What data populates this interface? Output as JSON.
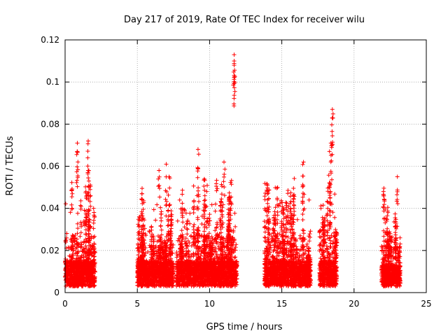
{
  "chart_data": {
    "type": "scatter",
    "title": "Day 217 of 2019, Rate Of TEC Index for receiver wilu",
    "xlabel": "GPS time / hours",
    "ylabel": "ROTI / TECUs",
    "xlim": [
      0,
      25
    ],
    "ylim": [
      0,
      0.12
    ],
    "xticks": [
      0,
      5,
      10,
      15,
      20,
      25
    ],
    "xtick_labels": [
      "0",
      "5",
      "10",
      "15",
      "20",
      "25"
    ],
    "yticks": [
      0,
      0.02,
      0.04,
      0.06,
      0.08,
      0.1,
      0.12
    ],
    "ytick_labels": [
      "0",
      "0.02",
      "0.04",
      "0.06",
      "0.08",
      "0.1",
      "0.12"
    ],
    "grid": true,
    "marker": "+",
    "color": "#ff0000",
    "series": [
      {
        "name": "ROTI",
        "clusters": [
          {
            "start": 0.0,
            "end": 2.1,
            "base": 0.012,
            "spread": 0.022
          },
          {
            "start": 5.0,
            "end": 7.5,
            "base": 0.012,
            "spread": 0.02
          },
          {
            "start": 7.7,
            "end": 11.9,
            "base": 0.012,
            "spread": 0.022
          },
          {
            "start": 13.8,
            "end": 17.0,
            "base": 0.012,
            "spread": 0.022
          },
          {
            "start": 17.6,
            "end": 18.8,
            "base": 0.012,
            "spread": 0.025
          },
          {
            "start": 21.9,
            "end": 23.2,
            "base": 0.01,
            "spread": 0.018
          }
        ],
        "peaks": [
          {
            "x": 0.85,
            "y": 0.071
          },
          {
            "x": 0.85,
            "y": 0.067
          },
          {
            "x": 1.6,
            "y": 0.072
          },
          {
            "x": 1.6,
            "y": 0.058
          },
          {
            "x": 6.5,
            "y": 0.058
          },
          {
            "x": 7.0,
            "y": 0.061
          },
          {
            "x": 7.2,
            "y": 0.055
          },
          {
            "x": 9.2,
            "y": 0.068
          },
          {
            "x": 9.2,
            "y": 0.059
          },
          {
            "x": 11.0,
            "y": 0.062
          },
          {
            "x": 11.7,
            "y": 0.113
          },
          {
            "x": 11.7,
            "y": 0.11
          },
          {
            "x": 11.7,
            "y": 0.108
          },
          {
            "x": 16.5,
            "y": 0.062
          },
          {
            "x": 18.5,
            "y": 0.087
          },
          {
            "x": 18.5,
            "y": 0.083
          },
          {
            "x": 18.4,
            "y": 0.071
          },
          {
            "x": 18.3,
            "y": 0.067
          },
          {
            "x": 23.0,
            "y": 0.055
          },
          {
            "x": 22.1,
            "y": 0.044
          }
        ]
      }
    ]
  }
}
